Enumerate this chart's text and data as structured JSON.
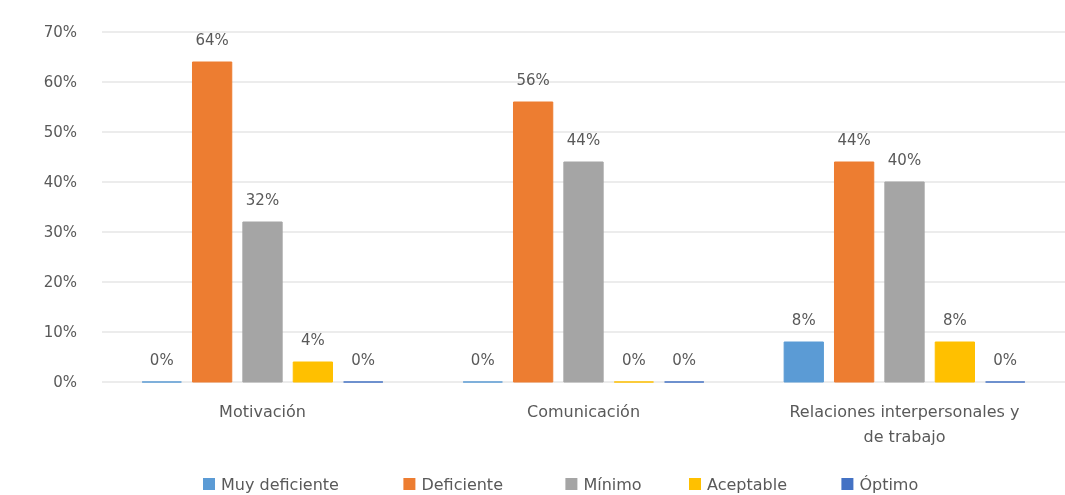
{
  "chart_data": {
    "type": "bar",
    "categories": [
      "Motivación",
      "Comunicación",
      "Relaciones interpersonales y de trabajo"
    ],
    "series": [
      {
        "name": "Muy deficiente",
        "color": "#5b9bd5",
        "values": [
          0,
          0,
          8
        ],
        "value_labels": [
          "0%",
          "0%",
          "8%"
        ]
      },
      {
        "name": "Deficiente",
        "color": "#ed7d31",
        "values": [
          64,
          56,
          44
        ],
        "value_labels": [
          "64%",
          "56%",
          "44%"
        ]
      },
      {
        "name": "Mínimo",
        "color": "#a5a5a5",
        "values": [
          32,
          44,
          40
        ],
        "value_labels": [
          "32%",
          "44%",
          "40%"
        ]
      },
      {
        "name": "Aceptable",
        "color": "#ffc000",
        "values": [
          4,
          0,
          8
        ],
        "value_labels": [
          "4%",
          "0%",
          "8%"
        ]
      },
      {
        "name": "Óptimo",
        "color": "#4472c4",
        "values": [
          0,
          0,
          0
        ],
        "value_labels": [
          "0%",
          "0%",
          "0%"
        ]
      }
    ],
    "ylim": [
      0,
      70
    ],
    "yticks": [
      {
        "value": 0,
        "label": "0%"
      },
      {
        "value": 10,
        "label": "10%"
      },
      {
        "value": 20,
        "label": "20%"
      },
      {
        "value": 30,
        "label": "30%"
      },
      {
        "value": 40,
        "label": "40%"
      },
      {
        "value": 50,
        "label": "50%"
      },
      {
        "value": 60,
        "label": "60%"
      },
      {
        "value": 70,
        "label": "70%"
      }
    ],
    "grid": "y",
    "legend": "bottom"
  }
}
